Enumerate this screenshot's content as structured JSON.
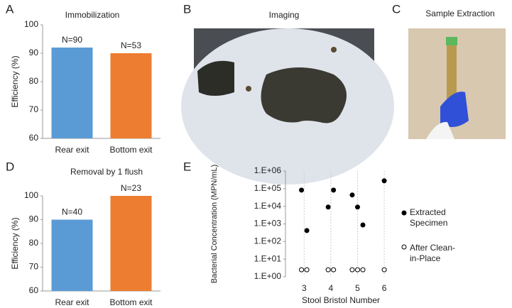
{
  "chart_data": [
    {
      "type": "bar",
      "panel": "A",
      "title": "Immobilization",
      "ylabel": "Efficiency (%)",
      "categories": [
        "Rear exit",
        "Bottom exit"
      ],
      "values": [
        92,
        90
      ],
      "annotations": [
        "N=90",
        "N=53"
      ],
      "colors": [
        "#5b9bd5",
        "#ed7d31"
      ],
      "ylim": [
        60,
        100
      ],
      "yticks": [
        60,
        70,
        80,
        90,
        100
      ]
    },
    {
      "type": "bar",
      "panel": "D",
      "title": "Removal by 1 flush",
      "ylabel": "Efficiency (%)",
      "categories": [
        "Rear exit",
        "Bottom exit"
      ],
      "values": [
        90,
        100
      ],
      "annotations": [
        "N=40",
        "N=23"
      ],
      "colors": [
        "#5b9bd5",
        "#ed7d31"
      ],
      "ylim": [
        60,
        100
      ],
      "yticks": [
        60,
        70,
        80,
        90,
        100
      ]
    },
    {
      "type": "scatter",
      "panel": "E",
      "ylabel": "Bacterial Concentration (MPN/mL)",
      "xlabel": "Stool Bristol Number",
      "log_y": true,
      "grid": true,
      "legend": "right",
      "xlim": [
        2.3,
        6.45
      ],
      "xticks": [
        3,
        4,
        5,
        6
      ],
      "ylim": [
        1,
        1000000
      ],
      "yticks": [
        {
          "value": 1,
          "label": "1.E+00"
        },
        {
          "value": 10,
          "label": "1.E+01"
        },
        {
          "value": 100,
          "label": "1.E+02"
        },
        {
          "value": 1000,
          "label": "1.E+03"
        },
        {
          "value": 10000,
          "label": "1.E+04"
        },
        {
          "value": 100000,
          "label": "1.E+05"
        },
        {
          "value": 1000000,
          "label": "1.E+06"
        }
      ],
      "series": [
        {
          "name": "Extracted Specimen",
          "color": "#000000",
          "filled": true,
          "x": [
            2.9,
            3.1,
            3.9,
            4.1,
            4.8,
            5.0,
            5.2,
            6.0
          ],
          "values": [
            83000,
            420,
            9000,
            83000,
            44000,
            9000,
            870,
            280000
          ]
        },
        {
          "name": "After Clean-in-Place",
          "color": "#000000",
          "filled": false,
          "x": [
            2.9,
            3.1,
            3.9,
            4.1,
            4.8,
            5.0,
            5.2,
            6.0
          ],
          "values": [
            2.5,
            2.5,
            2.5,
            2.5,
            2.5,
            2.5,
            2.5,
            2.5
          ]
        }
      ]
    }
  ],
  "images": [
    {
      "panel": "B",
      "title": "Imaging"
    },
    {
      "panel": "C",
      "title": "Sample Extraction"
    }
  ]
}
